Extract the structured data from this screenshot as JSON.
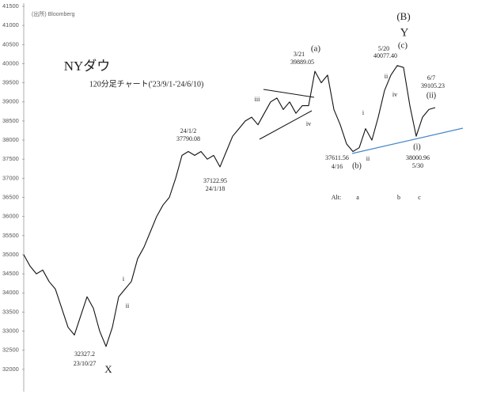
{
  "chart_data": {
    "type": "line",
    "title": "NYダウ",
    "subtitle": "120分足チャート('23/9/1-'24/6/10)",
    "source": "(出所) Bloomberg",
    "color": "#111111",
    "ylim": [
      31500,
      41500
    ],
    "yticks": [
      32000,
      32500,
      33000,
      33500,
      34000,
      34500,
      35000,
      35500,
      36000,
      36500,
      37000,
      37500,
      38000,
      38500,
      39000,
      39500,
      40000,
      40500,
      41000,
      41500
    ],
    "values": [
      35000,
      34700,
      34500,
      34600,
      34300,
      34100,
      33600,
      33100,
      32900,
      33400,
      33900,
      33600,
      33000,
      32600,
      33100,
      33900,
      34100,
      34300,
      34900,
      35200,
      35600,
      36000,
      36300,
      36500,
      37000,
      37600,
      37700,
      37600,
      37700,
      37500,
      37600,
      37300,
      37700,
      38100,
      38300,
      38500,
      38600,
      38400,
      38700,
      39000,
      39100,
      38800,
      39000,
      38700,
      38900,
      38900,
      39800,
      39500,
      39700,
      38800,
      38400,
      37900,
      37700,
      37800,
      38300,
      38000,
      38600,
      39300,
      39700,
      39950,
      39900,
      38900,
      38100,
      38600,
      38800,
      38850
    ],
    "annotations": [
      "32327.2",
      "23/10/27",
      "X",
      "i",
      "ii",
      "24/1/2",
      "37790.08",
      "37122.95",
      "24/1/18",
      "iii",
      "iv",
      "(a)",
      "3/21",
      "39889.05",
      "(B)",
      "Y",
      "5/20",
      "40077.40",
      "(c)",
      "ii",
      "iv",
      "i",
      "ii",
      "37611.56",
      "4/16",
      "(b)",
      "6/7",
      "39105.23",
      "(ii)",
      "(i)",
      "38000.96",
      "5/30",
      "Alt:",
      "a",
      "b",
      "c"
    ]
  }
}
